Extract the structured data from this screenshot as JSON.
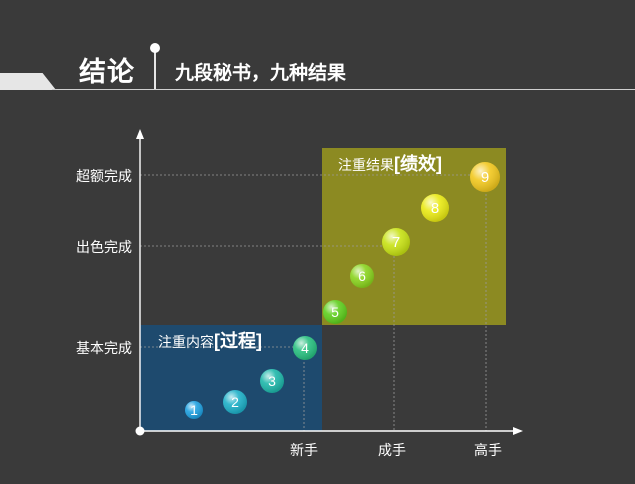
{
  "header": {
    "title": "结论",
    "subtitle": "九段秘书，九种结果"
  },
  "diagram": {
    "y_levels": [
      "超额完成",
      "出色完成",
      "基本完成"
    ],
    "x_levels": [
      "新手",
      "成手",
      "高手"
    ],
    "zones": [
      {
        "prefix": "注重内容",
        "bracket": "[过程]",
        "color": "#1e4a6e"
      },
      {
        "prefix": "注重结果",
        "bracket": "[绩效]",
        "color": "#8c8a22"
      }
    ],
    "points": [
      {
        "label": "1",
        "color": "#1ea0e0"
      },
      {
        "label": "2",
        "color": "#1eb0c8"
      },
      {
        "label": "3",
        "color": "#1eb7aa"
      },
      {
        "label": "4",
        "color": "#28c080"
      },
      {
        "label": "5",
        "color": "#5fcf1e"
      },
      {
        "label": "6",
        "color": "#8ad41e"
      },
      {
        "label": "7",
        "color": "#c8e214"
      },
      {
        "label": "8",
        "color": "#eaea14"
      },
      {
        "label": "9",
        "color": "#f2c81e"
      }
    ]
  }
}
